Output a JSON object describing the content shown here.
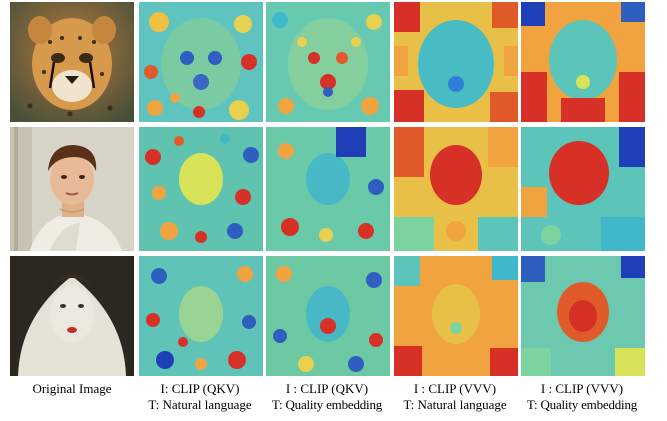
{
  "figure": {
    "columns": [
      {
        "caption_line1": "Original Image",
        "caption_line2": ""
      },
      {
        "caption_line1": "I: CLIP (QKV)",
        "caption_line2": "T: Natural language"
      },
      {
        "caption_line1": "I : CLIP (QKV)",
        "caption_line2": "T: Quality embedding"
      },
      {
        "caption_line1": "I : CLIP (VVV)",
        "caption_line2": "T: Natural language"
      },
      {
        "caption_line1": "I : CLIP (VVV)",
        "caption_line2": "T: Quality embedding"
      }
    ],
    "rows": [
      {
        "subject": "cheetah-cub"
      },
      {
        "subject": "classical-young-man"
      },
      {
        "subject": "veiled-figure"
      }
    ],
    "colormap": [
      "#1f3fb8",
      "#2e7fd6",
      "#3fb8c9",
      "#7dd3a0",
      "#d9e35a",
      "#f1a340",
      "#d73027"
    ]
  }
}
